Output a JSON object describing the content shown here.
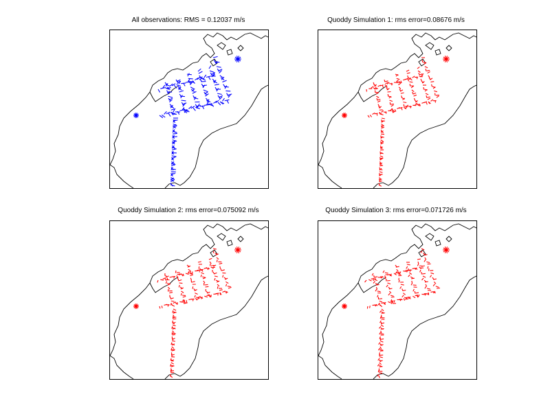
{
  "figure": {
    "panels": [
      {
        "title": "All observations: RMS = 0.12037 m/s",
        "vector_color": "#0000ff"
      },
      {
        "title": "Quoddy Simulation 1: rms error=0.08676 m/s",
        "vector_color": "#ff0000"
      },
      {
        "title": "Quoddy Simulation 2: rms error=0.075092 m/s",
        "vector_color": "#ff0000"
      },
      {
        "title": "Quoddy Simulation 3: rms error=0.071726 m/s",
        "vector_color": "#ff0000"
      }
    ]
  }
}
